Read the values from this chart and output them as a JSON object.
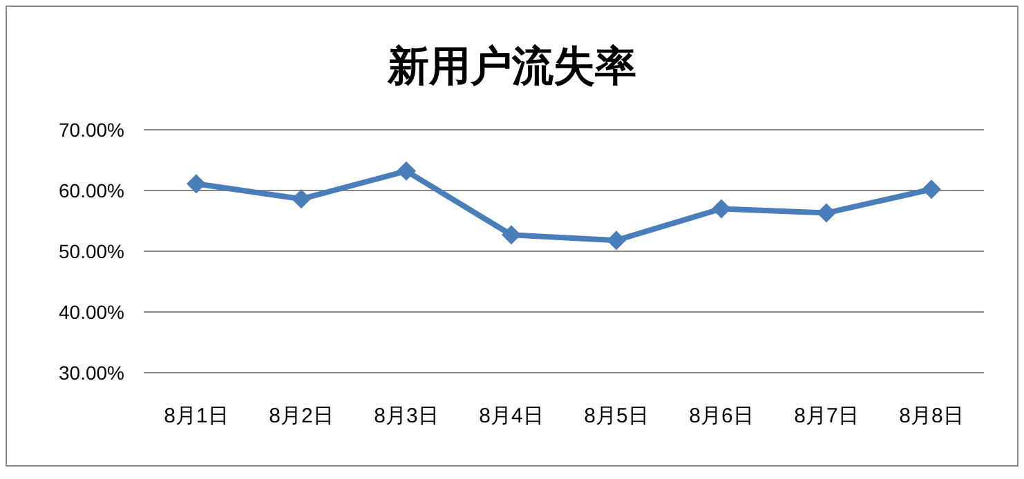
{
  "chart_data": {
    "type": "line",
    "title": "新用户流失率",
    "categories": [
      "8月1日",
      "8月2日",
      "8月3日",
      "8月4日",
      "8月5日",
      "8月6日",
      "8月7日",
      "8月8日"
    ],
    "series": [
      {
        "color": "#4a7ebb",
        "values": [
          61.1,
          58.6,
          63.2,
          52.7,
          51.8,
          57.0,
          56.3,
          60.2
        ]
      }
    ],
    "ylim": [
      30,
      70
    ],
    "yticks": [
      {
        "value": 30,
        "label": "30.00%"
      },
      {
        "value": 40,
        "label": "40.00%"
      },
      {
        "value": 50,
        "label": "50.00%"
      },
      {
        "value": 60,
        "label": "60.00%"
      },
      {
        "value": 70,
        "label": "70.00%"
      }
    ],
    "grid": "y",
    "marker": "diamond",
    "line_style": "solid"
  }
}
